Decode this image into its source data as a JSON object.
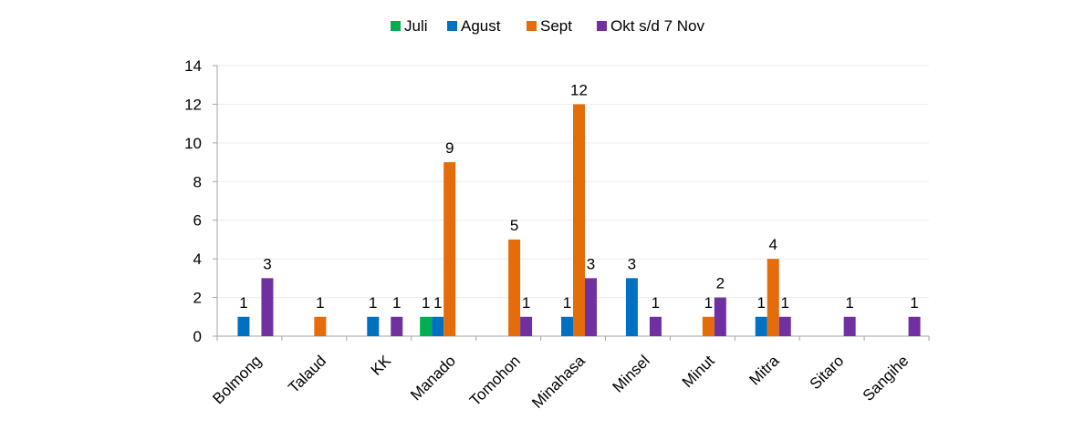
{
  "chart_data": {
    "type": "bar",
    "title": "",
    "xlabel": "",
    "ylabel": "",
    "ylim": [
      0,
      14
    ],
    "yticks": [
      0,
      2,
      4,
      6,
      8,
      10,
      12,
      14
    ],
    "grid": true,
    "legend_position": "top",
    "categories": [
      "Bolmong",
      "Talaud",
      "KK",
      "Manado",
      "Tomohon",
      "Minahasa",
      "Minsel",
      "Minut",
      "Mitra",
      "Sitaro",
      "Sangihe"
    ],
    "series": [
      {
        "name": "Juli",
        "color": "#00b050",
        "values": [
          null,
          null,
          null,
          1,
          null,
          null,
          null,
          null,
          null,
          null,
          null
        ]
      },
      {
        "name": "Agust",
        "color": "#0070c0",
        "values": [
          1,
          null,
          1,
          1,
          null,
          1,
          3,
          null,
          1,
          null,
          null
        ]
      },
      {
        "name": "Sept",
        "color": "#e46c0a",
        "values": [
          null,
          1,
          null,
          9,
          5,
          12,
          null,
          1,
          4,
          null,
          null
        ]
      },
      {
        "name": "Okt s/d  7 Nov",
        "color": "#7030a0",
        "values": [
          3,
          null,
          1,
          null,
          1,
          3,
          1,
          2,
          1,
          1,
          1
        ]
      }
    ]
  }
}
